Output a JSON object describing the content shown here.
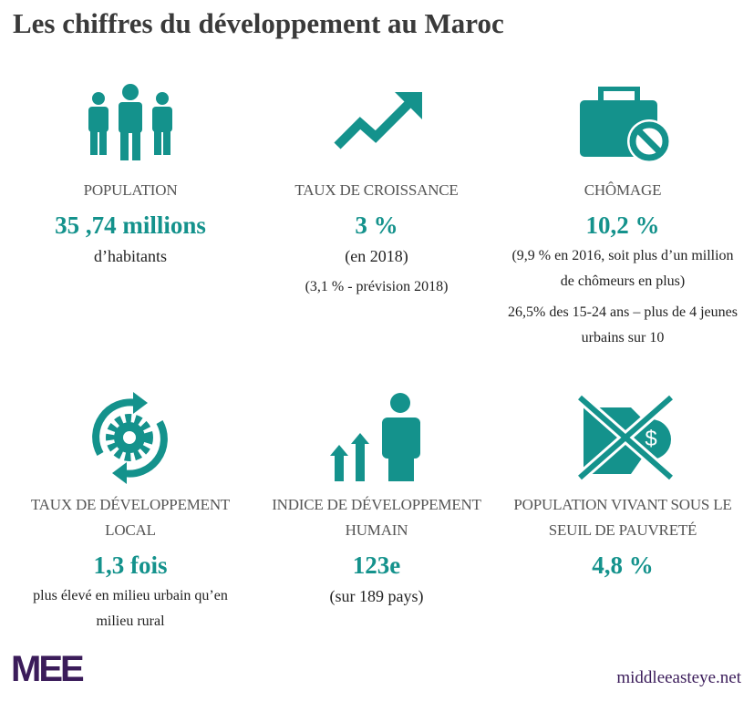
{
  "title": "Les chiffres du développement au Maroc",
  "items": [
    {
      "label": [
        "POPULATION"
      ],
      "value": "35 ,74 millions",
      "notes": [
        "d’habitants"
      ]
    },
    {
      "label": [
        "TAUX DE CROISSANCE"
      ],
      "value": "3 %",
      "notes": [
        "(en 2018)",
        "(3,1 % - prévision 2018)"
      ]
    },
    {
      "label": [
        "CHÔMAGE"
      ],
      "value": "10,2 %",
      "notes": [
        "(9,9 % en 2016, soit plus d’un million de chômeurs en plus)",
        "26,5% des 15-24 ans – plus de 4 jeunes urbains sur 10"
      ]
    },
    {
      "label": [
        "TAUX DE DÉVELOPPEMENT",
        "LOCAL"
      ],
      "value": "1,3 fois",
      "notes": [
        "plus élevé en milieu urbain qu’en milieu rural"
      ]
    },
    {
      "label": [
        "INDICE DE DÉVELOPPEMENT",
        "HUMAIN"
      ],
      "value": "123e",
      "notes": [
        "(sur 189 pays)"
      ]
    },
    {
      "label": [
        "POPULATION VIVANT SOUS LE",
        "SEUIL DE PAUVRETÉ"
      ],
      "value": "4,8 %",
      "notes": []
    }
  ],
  "footer": {
    "logo": "MEE",
    "site": "middleeasteye.net"
  }
}
